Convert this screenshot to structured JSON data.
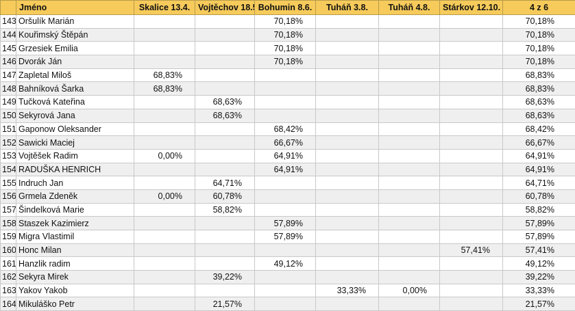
{
  "header": {
    "rank": "",
    "name": "Jméno",
    "events": [
      "Skalice 13.4.",
      "Vojtěchov 18.5.",
      "Bohumin 8.6.",
      "Tuháň 3.8.",
      "Tuháň 4.8.",
      "Stárkov 12.10."
    ],
    "total": "4 z 6"
  },
  "rows": [
    {
      "rank": "143",
      "name": "Oršulík Marián",
      "scores": [
        "",
        "",
        "70,18%",
        "",
        "",
        ""
      ],
      "total": "70,18%"
    },
    {
      "rank": "144",
      "name": "Kouřimský Štěpán",
      "scores": [
        "",
        "",
        "70,18%",
        "",
        "",
        ""
      ],
      "total": "70,18%"
    },
    {
      "rank": "145",
      "name": "Grzesiek Emilia",
      "scores": [
        "",
        "",
        "70,18%",
        "",
        "",
        ""
      ],
      "total": "70,18%"
    },
    {
      "rank": "146",
      "name": "Dvorák Ján",
      "scores": [
        "",
        "",
        "70,18%",
        "",
        "",
        ""
      ],
      "total": "70,18%"
    },
    {
      "rank": "147",
      "name": "Zapletal Miloš",
      "scores": [
        "68,83%",
        "",
        "",
        "",
        "",
        ""
      ],
      "total": "68,83%"
    },
    {
      "rank": "148",
      "name": "Bahníková Šarka",
      "scores": [
        "68,83%",
        "",
        "",
        "",
        "",
        ""
      ],
      "total": "68,83%"
    },
    {
      "rank": "149",
      "name": "Tučková Kateřina",
      "scores": [
        "",
        "68,63%",
        "",
        "",
        "",
        ""
      ],
      "total": "68,63%"
    },
    {
      "rank": "150",
      "name": "Sekyrová Jana",
      "scores": [
        "",
        "68,63%",
        "",
        "",
        "",
        ""
      ],
      "total": "68,63%"
    },
    {
      "rank": "151",
      "name": "Gaponow Oleksander",
      "scores": [
        "",
        "",
        "68,42%",
        "",
        "",
        ""
      ],
      "total": "68,42%"
    },
    {
      "rank": "152",
      "name": "Sawicki Maciej",
      "scores": [
        "",
        "",
        "66,67%",
        "",
        "",
        ""
      ],
      "total": "66,67%"
    },
    {
      "rank": "153",
      "name": "Vojtěšek Radim",
      "scores": [
        "0,00%",
        "",
        "64,91%",
        "",
        "",
        ""
      ],
      "total": "64,91%"
    },
    {
      "rank": "154",
      "name": "RADUŠKA HENRICH",
      "scores": [
        "",
        "",
        "64,91%",
        "",
        "",
        ""
      ],
      "total": "64,91%"
    },
    {
      "rank": "155",
      "name": "Indruch Jan",
      "scores": [
        "",
        "64,71%",
        "",
        "",
        "",
        ""
      ],
      "total": "64,71%"
    },
    {
      "rank": "156",
      "name": "Grmela Zdeněk",
      "scores": [
        "0,00%",
        "60,78%",
        "",
        "",
        "",
        ""
      ],
      "total": "60,78%"
    },
    {
      "rank": "157",
      "name": "Šindelková Marie",
      "scores": [
        "",
        "58,82%",
        "",
        "",
        "",
        ""
      ],
      "total": "58,82%"
    },
    {
      "rank": "158",
      "name": "Staszek Kazimierz",
      "scores": [
        "",
        "",
        "57,89%",
        "",
        "",
        ""
      ],
      "total": "57,89%"
    },
    {
      "rank": "159",
      "name": "Migra Vlastimil",
      "scores": [
        "",
        "",
        "57,89%",
        "",
        "",
        ""
      ],
      "total": "57,89%"
    },
    {
      "rank": "160",
      "name": "Honc Milan",
      "scores": [
        "",
        "",
        "",
        "",
        "",
        "57,41%"
      ],
      "total": "57,41%"
    },
    {
      "rank": "161",
      "name": "Hanzlik radim",
      "scores": [
        "",
        "",
        "49,12%",
        "",
        "",
        ""
      ],
      "total": "49,12%"
    },
    {
      "rank": "162",
      "name": "Sekyra Mirek",
      "scores": [
        "",
        "39,22%",
        "",
        "",
        "",
        ""
      ],
      "total": "39,22%"
    },
    {
      "rank": "163",
      "name": "Yakov Yakob",
      "scores": [
        "",
        "",
        "",
        "33,33%",
        "0,00%",
        ""
      ],
      "total": "33,33%"
    },
    {
      "rank": "164",
      "name": "Mikuláško Petr",
      "scores": [
        "",
        "21,57%",
        "",
        "",
        "",
        ""
      ],
      "total": "21,57%"
    }
  ]
}
